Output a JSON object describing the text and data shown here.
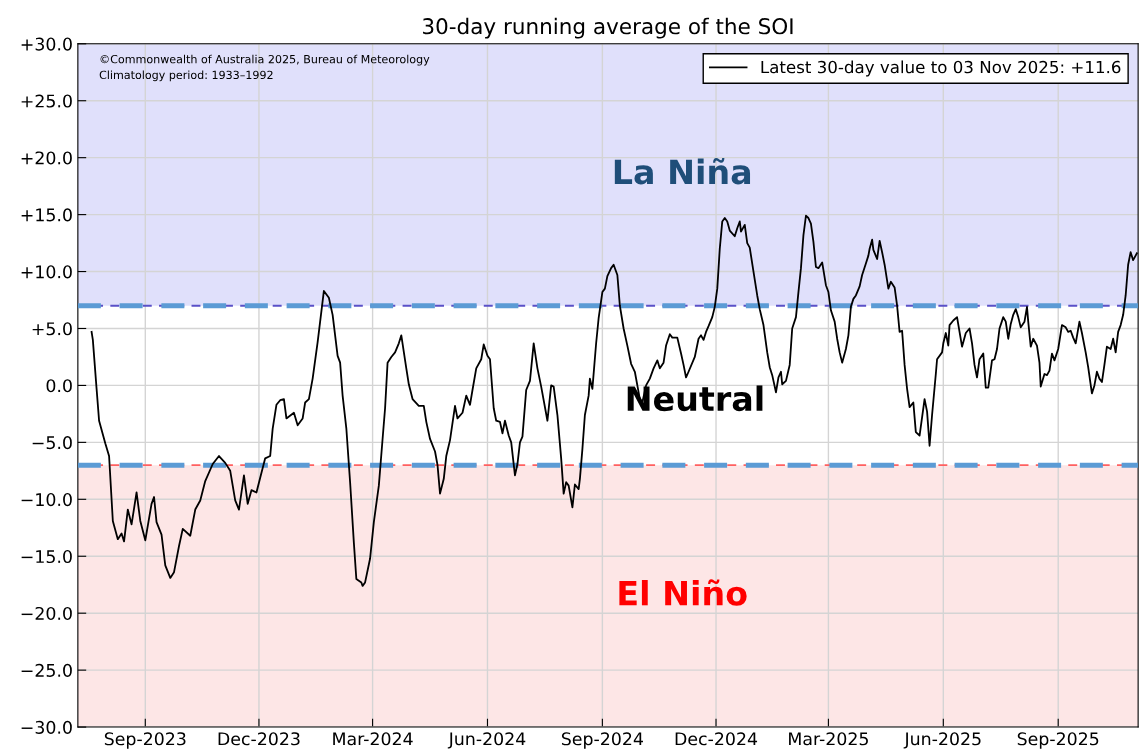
{
  "chart_data": {
    "type": "line",
    "title": "30-day running average of the SOI",
    "series": [
      {
        "name": "Latest 30-day value to 03 Nov 2025: +11.6",
        "color": "#000000",
        "x": [
          "2023-07-20",
          "2023-07-21",
          "2023-07-24",
          "2023-07-26",
          "2023-07-31",
          "2023-08-03",
          "2023-08-06",
          "2023-08-10",
          "2023-08-13",
          "2023-08-15",
          "2023-08-18",
          "2023-08-21",
          "2023-08-25",
          "2023-08-28",
          "2023-09-01",
          "2023-09-06",
          "2023-09-08",
          "2023-09-10",
          "2023-09-14",
          "2023-09-17",
          "2023-09-21",
          "2023-09-24",
          "2023-09-28",
          "2023-10-01",
          "2023-10-07",
          "2023-10-11",
          "2023-10-15",
          "2023-10-19",
          "2023-10-25",
          "2023-10-30",
          "2023-11-04",
          "2023-11-08",
          "2023-11-12",
          "2023-11-15",
          "2023-11-19",
          "2023-11-22",
          "2023-11-25",
          "2023-11-29",
          "2023-12-02",
          "2023-12-06",
          "2023-12-10",
          "2023-12-12",
          "2023-12-15",
          "2023-12-18",
          "2023-12-21",
          "2023-12-23",
          "2023-12-29",
          "2024-01-01",
          "2024-01-05",
          "2024-01-07",
          "2024-01-10",
          "2024-01-13",
          "2024-01-17",
          "2024-01-22",
          "2024-01-26",
          "2024-01-29",
          "2024-02-02",
          "2024-02-04",
          "2024-02-06",
          "2024-02-09",
          "2024-02-12",
          "2024-02-15",
          "2024-02-17",
          "2024-02-21",
          "2024-02-22",
          "2024-02-24",
          "2024-02-28",
          "2024-03-02",
          "2024-03-06",
          "2024-03-09",
          "2024-03-11",
          "2024-03-13",
          "2024-03-16",
          "2024-03-19",
          "2024-03-22",
          "2024-03-24",
          "2024-03-28",
          "2024-03-30",
          "2024-04-02",
          "2024-04-07",
          "2024-04-11",
          "2024-04-13",
          "2024-04-16",
          "2024-04-20",
          "2024-04-22",
          "2024-04-24",
          "2024-04-27",
          "2024-04-29",
          "2024-05-02",
          "2024-05-06",
          "2024-05-08",
          "2024-05-12",
          "2024-05-15",
          "2024-05-18",
          "2024-05-20",
          "2024-05-23",
          "2024-05-27",
          "2024-05-29",
          "2024-06-01",
          "2024-06-03",
          "2024-06-06",
          "2024-06-08",
          "2024-06-11",
          "2024-06-13",
          "2024-06-15",
          "2024-06-18",
          "2024-06-20",
          "2024-06-23",
          "2024-06-25",
          "2024-06-27",
          "2024-06-29",
          "2024-07-02",
          "2024-07-05",
          "2024-07-08",
          "2024-07-11",
          "2024-07-14",
          "2024-07-19",
          "2024-07-22",
          "2024-07-24",
          "2024-07-27",
          "2024-07-30",
          "2024-08-01",
          "2024-08-03",
          "2024-08-05",
          "2024-08-08",
          "2024-08-10",
          "2024-08-13",
          "2024-08-14",
          "2024-08-16",
          "2024-08-18",
          "2024-08-21",
          "2024-08-22",
          "2024-08-24",
          "2024-08-27",
          "2024-08-29",
          "2024-09-01",
          "2024-09-03",
          "2024-09-05",
          "2024-09-08",
          "2024-09-10",
          "2024-09-13",
          "2024-09-15",
          "2024-09-18",
          "2024-09-21",
          "2024-09-24",
          "2024-09-27",
          "2024-09-29",
          "2024-10-01",
          "2024-10-03",
          "2024-10-06",
          "2024-10-09",
          "2024-10-12",
          "2024-10-15",
          "2024-10-17",
          "2024-10-20",
          "2024-10-22",
          "2024-10-25",
          "2024-10-27",
          "2024-10-31",
          "2024-11-03",
          "2024-11-05",
          "2024-11-07",
          "2024-11-09",
          "2024-11-14",
          "2024-11-17",
          "2024-11-19",
          "2024-11-21",
          "2024-11-23",
          "2024-11-25",
          "2024-11-28",
          "2024-11-30",
          "2024-12-02",
          "2024-12-04",
          "2024-12-06",
          "2024-12-08",
          "2024-12-10",
          "2024-12-12",
          "2024-12-16",
          "2024-12-18",
          "2024-12-20",
          "2024-12-21",
          "2024-12-24",
          "2024-12-26",
          "2024-12-28",
          "2024-12-31",
          "2025-01-03",
          "2025-01-05",
          "2025-01-08",
          "2025-01-11",
          "2025-01-13",
          "2025-01-15",
          "2025-01-18",
          "2025-01-20",
          "2025-01-22",
          "2025-01-23",
          "2025-01-26",
          "2025-01-29",
          "2025-01-31",
          "2025-02-03",
          "2025-02-05",
          "2025-02-07",
          "2025-02-09",
          "2025-02-11",
          "2025-02-13",
          "2025-02-15",
          "2025-02-17",
          "2025-02-19",
          "2025-02-21",
          "2025-02-24",
          "2025-02-27",
          "2025-03-01",
          "2025-03-03",
          "2025-03-06",
          "2025-03-08",
          "2025-03-10",
          "2025-03-12",
          "2025-03-15",
          "2025-03-17",
          "2025-03-19",
          "2025-03-21",
          "2025-03-23",
          "2025-03-26",
          "2025-03-28",
          "2025-03-31",
          "2025-04-02",
          "2025-04-03",
          "2025-04-05",
          "2025-04-06",
          "2025-04-09",
          "2025-04-11",
          "2025-04-13",
          "2025-04-15",
          "2025-04-18",
          "2025-04-20",
          "2025-04-23",
          "2025-04-25",
          "2025-04-27",
          "2025-04-29",
          "2025-05-01",
          "2025-05-03",
          "2025-05-05",
          "2025-05-08",
          "2025-05-10",
          "2025-05-13",
          "2025-05-17",
          "2025-05-19",
          "2025-05-21",
          "2025-05-23",
          "2025-05-26",
          "2025-05-27",
          "2025-05-31",
          "2025-06-01",
          "2025-06-03",
          "2025-06-05",
          "2025-06-06",
          "2025-06-09",
          "2025-06-12",
          "2025-06-16",
          "2025-06-19",
          "2025-06-22",
          "2025-06-24",
          "2025-06-26",
          "2025-06-28",
          "2025-06-30",
          "2025-07-03",
          "2025-07-05",
          "2025-07-07",
          "2025-07-10",
          "2025-07-12",
          "2025-07-14",
          "2025-07-16",
          "2025-07-19",
          "2025-07-21",
          "2025-07-23",
          "2025-07-25",
          "2025-07-27",
          "2025-07-29",
          "2025-07-31",
          "2025-08-02",
          "2025-08-05",
          "2025-08-07",
          "2025-08-08",
          "2025-08-10",
          "2025-08-12",
          "2025-08-15",
          "2025-08-17",
          "2025-08-18",
          "2025-08-21",
          "2025-08-23",
          "2025-08-25",
          "2025-08-27",
          "2025-08-29",
          "2025-09-01",
          "2025-09-04",
          "2025-09-07",
          "2025-09-09",
          "2025-09-11",
          "2025-09-13",
          "2025-09-15",
          "2025-09-18",
          "2025-09-20",
          "2025-09-23",
          "2025-09-25",
          "2025-09-28",
          "2025-09-30",
          "2025-10-02",
          "2025-10-04",
          "2025-10-06",
          "2025-10-08",
          "2025-10-10",
          "2025-10-13",
          "2025-10-15",
          "2025-10-17",
          "2025-10-19",
          "2025-10-21",
          "2025-10-23",
          "2025-10-25",
          "2025-10-27",
          "2025-10-29",
          "2025-10-31",
          "2025-11-03"
        ],
        "values": [
          4.7,
          4.0,
          -0.3,
          -3.1,
          -5.1,
          -6.2,
          -11.9,
          -13.5,
          -13.0,
          -13.7,
          -10.9,
          -12.2,
          -9.4,
          -11.9,
          -13.6,
          -10.4,
          -9.8,
          -12.0,
          -13.1,
          -15.8,
          -16.9,
          -16.4,
          -14.1,
          -12.6,
          -13.2,
          -10.9,
          -10.1,
          -8.4,
          -6.9,
          -6.2,
          -6.8,
          -7.5,
          -10.1,
          -10.9,
          -7.9,
          -10.4,
          -9.2,
          -9.4,
          -8.1,
          -6.4,
          -6.2,
          -3.8,
          -1.7,
          -1.3,
          -1.2,
          -2.9,
          -2.4,
          -3.5,
          -2.9,
          -1.5,
          -1.2,
          0.6,
          3.8,
          8.3,
          7.7,
          6.2,
          2.6,
          2.0,
          -0.9,
          -3.8,
          -8.5,
          -13.8,
          -17.0,
          -17.3,
          -17.6,
          -17.3,
          -15.2,
          -12.0,
          -8.8,
          -4.7,
          -2.0,
          2.0,
          2.5,
          2.9,
          3.7,
          4.4,
          1.5,
          0.1,
          -1.2,
          -1.8,
          -1.8,
          -3.2,
          -4.7,
          -5.8,
          -7.0,
          -9.5,
          -8.2,
          -6.2,
          -4.8,
          -1.8,
          -2.9,
          -2.4,
          -0.9,
          -1.7,
          -0.4,
          1.5,
          2.3,
          3.6,
          2.6,
          2.3,
          -2.0,
          -3.1,
          -3.2,
          -4.2,
          -3.1,
          -4.4,
          -5.0,
          -7.9,
          -6.9,
          -5.0,
          -4.5,
          -0.4,
          0.4,
          3.7,
          1.5,
          -0.1,
          -3.1,
          0.0,
          -0.1,
          -2.6,
          -6.4,
          -9.5,
          -8.5,
          -8.8,
          -10.7,
          -8.7,
          -9.1,
          -8.2,
          -5.6,
          -2.6,
          -0.9,
          0.6,
          -0.3,
          3.7,
          5.9,
          8.2,
          8.5,
          9.6,
          10.3,
          10.6,
          9.7,
          7.0,
          5.0,
          3.5,
          1.9,
          1.2,
          0.0,
          -1.2,
          -1.5,
          0.0,
          0.6,
          1.5,
          2.2,
          1.5,
          2.0,
          3.5,
          4.5,
          4.2,
          4.2,
          2.8,
          1.8,
          0.7,
          1.2,
          2.5,
          4.1,
          4.4,
          4.0,
          4.7,
          5.2,
          6.0,
          6.9,
          8.5,
          12.0,
          14.4,
          14.7,
          14.4,
          13.6,
          13.1,
          13.8,
          14.4,
          13.5,
          14.1,
          12.5,
          12.1,
          10.0,
          7.9,
          6.7,
          5.3,
          2.9,
          1.6,
          0.9,
          -0.6,
          0.7,
          1.2,
          0.1,
          0.4,
          1.8,
          5.0,
          6.0,
          8.2,
          10.3,
          13.2,
          14.9,
          14.7,
          14.2,
          12.6,
          10.4,
          10.3,
          10.8,
          8.8,
          8.2,
          6.6,
          5.6,
          4.1,
          2.9,
          2.0,
          3.2,
          4.4,
          6.9,
          7.6,
          7.9,
          8.7,
          9.7,
          10.7,
          11.4,
          12.0,
          12.8,
          11.9,
          11.1,
          12.7,
          11.7,
          10.6,
          8.5,
          9.1,
          8.6,
          7.0,
          4.7,
          4.8,
          1.8,
          -0.3,
          -1.9,
          -1.5,
          -4.1,
          -4.4,
          -1.2,
          -2.3,
          -5.3,
          -2.6,
          1.0,
          2.3,
          2.9,
          3.7,
          4.6,
          3.5,
          5.3,
          5.7,
          6.0,
          3.4,
          4.6,
          5.0,
          3.7,
          1.8,
          0.7,
          2.3,
          2.8,
          -0.2,
          -0.2,
          2.2,
          2.3,
          3.2,
          5.0,
          6.0,
          5.6,
          4.1,
          5.4,
          6.2,
          6.7,
          6.0,
          5.1,
          5.6,
          6.9,
          5.6,
          3.4,
          4.1,
          3.5,
          2.0,
          -0.1,
          1.0,
          0.9,
          1.3,
          2.8,
          2.2,
          3.2,
          5.3,
          5.1,
          4.7,
          4.8,
          4.2,
          3.7,
          5.6,
          4.6,
          2.9,
          1.6,
          -0.7,
          0.0,
          1.2,
          0.6,
          0.3,
          1.8,
          3.4,
          3.2,
          4.1,
          2.9,
          4.7,
          5.3,
          6.2,
          7.9,
          10.6,
          11.7,
          11.0,
          11.6
        ]
      }
    ],
    "xlim": [
      "2023-07-09",
      "2025-11-04"
    ],
    "xticks": [
      {
        "value": "2023-09-01",
        "label": "Sep-2023"
      },
      {
        "value": "2023-12-01",
        "label": "Dec-2023"
      },
      {
        "value": "2024-03-01",
        "label": "Mar-2024"
      },
      {
        "value": "2024-06-01",
        "label": "Jun-2024"
      },
      {
        "value": "2024-09-01",
        "label": "Sep-2024"
      },
      {
        "value": "2024-12-01",
        "label": "Dec-2024"
      },
      {
        "value": "2025-03-01",
        "label": "Mar-2025"
      },
      {
        "value": "2025-06-01",
        "label": "Jun-2025"
      },
      {
        "value": "2025-09-01",
        "label": "Sep-2025"
      }
    ],
    "ylim": [
      -30,
      30
    ],
    "yticks": [
      {
        "value": 30,
        "label": "+30.0"
      },
      {
        "value": 25,
        "label": "+25.0"
      },
      {
        "value": 20,
        "label": "+20.0"
      },
      {
        "value": 15,
        "label": "+15.0"
      },
      {
        "value": 10,
        "label": "+10.0"
      },
      {
        "value": 5,
        "label": "+5.0"
      },
      {
        "value": 0,
        "label": "0.0"
      },
      {
        "value": -5,
        "label": "−5.0"
      },
      {
        "value": -10,
        "label": "−10.0"
      },
      {
        "value": -15,
        "label": "−15.0"
      },
      {
        "value": -20,
        "label": "−20.0"
      },
      {
        "value": -25,
        "label": "−25.0"
      },
      {
        "value": -30,
        "label": "−30.0"
      }
    ],
    "bands": [
      {
        "axis": "y",
        "from": 7,
        "to": 30,
        "label": "La Niña",
        "color": "#e0e0fb"
      },
      {
        "axis": "y",
        "from": -30,
        "to": -7,
        "label": "El Niño",
        "color": "#fde6e6"
      }
    ],
    "ref_lines": [
      {
        "axis": "y",
        "value": 7,
        "color": "#5a50c8",
        "line_style": "dashed"
      },
      {
        "axis": "y",
        "value": 7,
        "color": "#5b9bd5",
        "line_style": "dashed"
      },
      {
        "axis": "y",
        "value": -7,
        "color": "#ff6060",
        "line_style": "dashed"
      },
      {
        "axis": "y",
        "value": -7,
        "color": "#5b9bd5",
        "line_style": "dashed"
      }
    ],
    "annotations": [
      "©Commonwealth of Australia 2025, Bureau of Meteorology",
      "Climatology period: 1933–1992",
      "Neutral"
    ],
    "grid": true,
    "legend": "top right",
    "line_style": "solid"
  }
}
